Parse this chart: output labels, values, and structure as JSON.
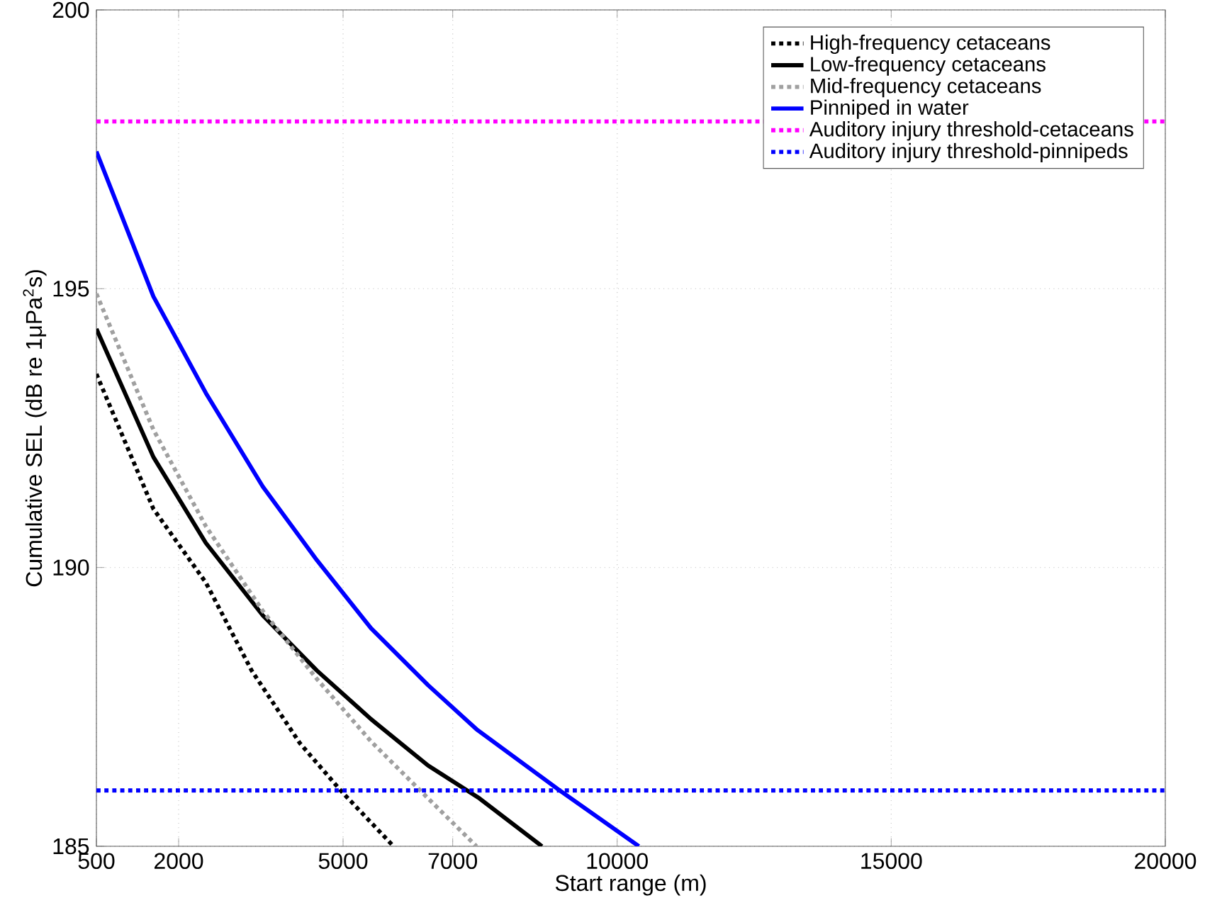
{
  "chart_data": {
    "type": "line",
    "xlabel": "Start range (m)",
    "ylabel": "Cumulative SEL (dB re 1μPa$^{2}$s)",
    "xlim": [
      500,
      20000
    ],
    "xticks": [
      500,
      2000,
      5000,
      7000,
      10000,
      15000,
      20000
    ],
    "ylim": [
      185,
      200
    ],
    "yticks": [
      185,
      190,
      195,
      200
    ],
    "grid": true,
    "legend": "top right",
    "marker": "none",
    "series": [
      {
        "name": "High-frequency cetaceans",
        "color": "#000000",
        "line_style": "dotted",
        "x": [
          500,
          1540,
          2496,
          3333,
          4211,
          4956,
          5921
        ],
        "values": [
          193.47,
          191.05,
          189.73,
          188.15,
          186.85,
          186.0,
          185.0
        ]
      },
      {
        "name": "Low-frequency cetaceans",
        "color": "#000000",
        "line_style": "solid",
        "x": [
          500,
          1540,
          2496,
          3535,
          4523,
          5510,
          6550,
          7486,
          8629
        ],
        "values": [
          194.28,
          191.98,
          190.44,
          189.14,
          188.15,
          187.28,
          186.45,
          185.86,
          185.0
        ]
      },
      {
        "name": "Mid-frequency cetaceans",
        "color": "#a0a0a0",
        "line_style": "dotted",
        "x": [
          500,
          1540,
          2496,
          3535,
          4523,
          5510,
          6550,
          7433
        ],
        "values": [
          194.91,
          192.47,
          190.74,
          189.22,
          188.0,
          186.88,
          185.86,
          185.0
        ]
      },
      {
        "name": "Pinniped in water",
        "color": "#0000ff",
        "line_style": "solid",
        "x": [
          500,
          1540,
          2496,
          3535,
          4523,
          5510,
          6550,
          7433,
          8941,
          10396
        ],
        "values": [
          197.46,
          194.86,
          193.13,
          191.45,
          190.13,
          188.91,
          187.89,
          187.1,
          186.01,
          185.0
        ]
      }
    ],
    "ref_lines": [
      {
        "axis": "y",
        "value": 198,
        "label": "Auditory injury threshold-cetaceans",
        "color": "#ff00ff",
        "line_style": "dotted"
      },
      {
        "axis": "y",
        "value": 186,
        "label": "Auditory injury threshold-pinnipeds",
        "color": "#0000ff",
        "line_style": "dotted"
      }
    ]
  }
}
